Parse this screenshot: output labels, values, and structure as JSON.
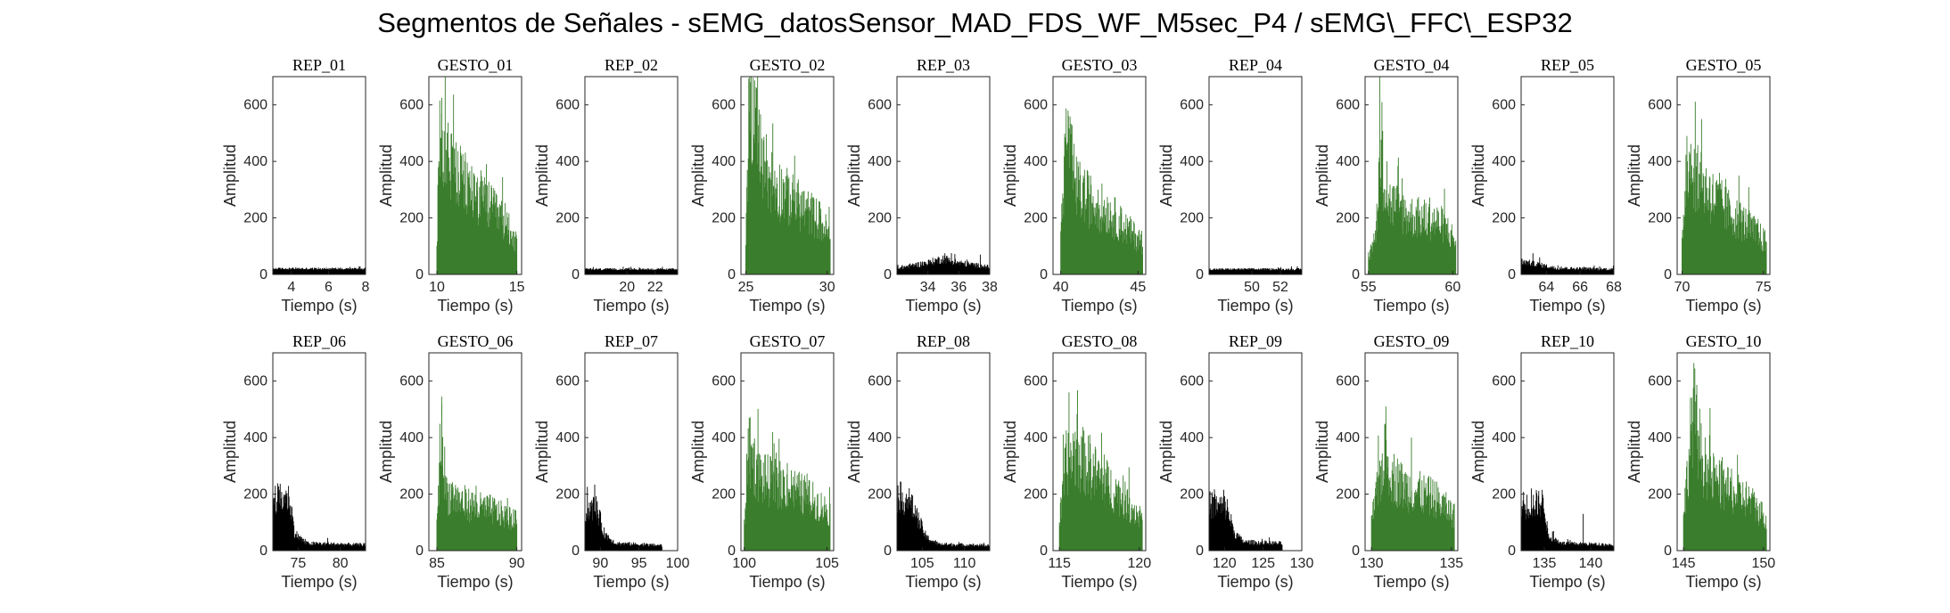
{
  "figure_title": "Segmentos de Señales - sEMG_datosSensor_MAD_FDS_WF_M5sec_P4 / sEMG\\_FFC\\_ESP32",
  "colors": {
    "rep": "#000000",
    "gesto": "#3a7d2c",
    "axis": "#262626"
  },
  "chart_data": [
    {
      "type": "bar",
      "title": "REP_01",
      "kind": "rep",
      "xlabel": "Tiempo (s)",
      "ylabel": "Amplitud",
      "xlim": [
        3,
        8
      ],
      "ylim": [
        0,
        700
      ],
      "xticks": [
        4,
        6,
        8
      ],
      "yticks": [
        0,
        200,
        400,
        600
      ],
      "envelope": [
        [
          3,
          20
        ],
        [
          8,
          20
        ]
      ],
      "noise": 0.4,
      "peaks": []
    },
    {
      "type": "bar",
      "title": "GESTO_01",
      "kind": "gesto",
      "xlabel": "Tiempo (s)",
      "ylabel": "Amplitud",
      "xlim": [
        9.5,
        15.3
      ],
      "ylim": [
        0,
        700
      ],
      "xticks": [
        10,
        15
      ],
      "yticks": [
        0,
        200,
        400,
        600
      ],
      "envelope": [
        [
          10,
          130
        ],
        [
          10.25,
          560
        ],
        [
          10.6,
          420
        ],
        [
          11.5,
          320
        ],
        [
          12.5,
          280
        ],
        [
          13.5,
          220
        ],
        [
          14.5,
          170
        ],
        [
          15,
          100
        ]
      ],
      "noise": 0.75,
      "peaks": [
        [
          10.3,
          570
        ],
        [
          11.5,
          430
        ],
        [
          13.1,
          390
        ]
      ]
    },
    {
      "type": "bar",
      "title": "REP_02",
      "kind": "rep",
      "xlabel": "Tiempo (s)",
      "ylabel": "Amplitud",
      "xlim": [
        17,
        23.6
      ],
      "ylim": [
        0,
        700
      ],
      "xticks": [
        20,
        22
      ],
      "yticks": [
        0,
        200,
        400,
        600
      ],
      "envelope": [
        [
          17,
          18
        ],
        [
          23.6,
          18
        ]
      ],
      "noise": 0.4,
      "peaks": []
    },
    {
      "type": "bar",
      "title": "GESTO_02",
      "kind": "gesto",
      "xlabel": "Tiempo (s)",
      "ylabel": "Amplitud",
      "xlim": [
        24.7,
        30.4
      ],
      "ylim": [
        0,
        700
      ],
      "xticks": [
        25,
        30
      ],
      "yticks": [
        0,
        200,
        400,
        600
      ],
      "envelope": [
        [
          25,
          150
        ],
        [
          25.25,
          670
        ],
        [
          25.7,
          450
        ],
        [
          26.5,
          330
        ],
        [
          27.5,
          270
        ],
        [
          28.5,
          230
        ],
        [
          29.5,
          190
        ],
        [
          30.2,
          130
        ]
      ],
      "noise": 0.75,
      "peaks": [
        [
          25.3,
          680
        ],
        [
          25.6,
          590
        ],
        [
          28,
          420
        ]
      ]
    },
    {
      "type": "bar",
      "title": "REP_03",
      "kind": "rep",
      "xlabel": "Tiempo (s)",
      "ylabel": "Amplitud",
      "xlim": [
        32,
        38
      ],
      "ylim": [
        0,
        700
      ],
      "xticks": [
        34,
        36,
        38
      ],
      "yticks": [
        0,
        200,
        400,
        600
      ],
      "envelope": [
        [
          32,
          22
        ],
        [
          34,
          40
        ],
        [
          35,
          55
        ],
        [
          36,
          40
        ],
        [
          38,
          25
        ]
      ],
      "noise": 0.6,
      "peaks": [
        [
          35.1,
          75
        ],
        [
          37.4,
          70
        ]
      ]
    },
    {
      "type": "bar",
      "title": "GESTO_03",
      "kind": "gesto",
      "xlabel": "Tiempo (s)",
      "ylabel": "Amplitud",
      "xlim": [
        39.5,
        45.5
      ],
      "ylim": [
        0,
        700
      ],
      "xticks": [
        40,
        45
      ],
      "yticks": [
        0,
        200,
        400,
        600
      ],
      "envelope": [
        [
          40,
          130
        ],
        [
          40.35,
          480
        ],
        [
          41,
          300
        ],
        [
          42,
          250
        ],
        [
          43,
          220
        ],
        [
          44,
          170
        ],
        [
          45.3,
          110
        ]
      ],
      "noise": 0.75,
      "peaks": [
        [
          40.5,
          560
        ],
        [
          40.3,
          470
        ]
      ]
    },
    {
      "type": "bar",
      "title": "REP_04",
      "kind": "rep",
      "xlabel": "Tiempo (s)",
      "ylabel": "Amplitud",
      "xlim": [
        47,
        53.5
      ],
      "ylim": [
        0,
        700
      ],
      "xticks": [
        50,
        52
      ],
      "yticks": [
        0,
        200,
        400,
        600
      ],
      "envelope": [
        [
          47,
          18
        ],
        [
          53.5,
          18
        ]
      ],
      "noise": 0.4,
      "peaks": []
    },
    {
      "type": "bar",
      "title": "GESTO_04",
      "kind": "gesto",
      "xlabel": "Tiempo (s)",
      "ylabel": "Amplitud",
      "xlim": [
        54.8,
        60.3
      ],
      "ylim": [
        0,
        700
      ],
      "xticks": [
        55,
        60
      ],
      "yticks": [
        0,
        200,
        400,
        600
      ],
      "envelope": [
        [
          55,
          60
        ],
        [
          55.4,
          120
        ],
        [
          55.7,
          420
        ],
        [
          56.2,
          250
        ],
        [
          57.5,
          200
        ],
        [
          58.5,
          190
        ],
        [
          59.5,
          170
        ],
        [
          60.2,
          110
        ]
      ],
      "noise": 0.75,
      "peaks": [
        [
          55.8,
          610
        ],
        [
          56.1,
          400
        ],
        [
          57,
          340
        ]
      ]
    },
    {
      "type": "bar",
      "title": "REP_05",
      "kind": "rep",
      "xlabel": "Tiempo (s)",
      "ylabel": "Amplitud",
      "xlim": [
        62.5,
        68
      ],
      "ylim": [
        0,
        700
      ],
      "xticks": [
        64,
        66,
        68
      ],
      "yticks": [
        0,
        200,
        400,
        600
      ],
      "envelope": [
        [
          62.5,
          45
        ],
        [
          63.5,
          35
        ],
        [
          64.5,
          22
        ],
        [
          68,
          18
        ]
      ],
      "noise": 0.55,
      "peaks": [
        [
          63.2,
          75
        ],
        [
          63.6,
          60
        ]
      ]
    },
    {
      "type": "bar",
      "title": "GESTO_05",
      "kind": "gesto",
      "xlabel": "Tiempo (s)",
      "ylabel": "Amplitud",
      "xlim": [
        69.7,
        75.4
      ],
      "ylim": [
        0,
        700
      ],
      "xticks": [
        70,
        75
      ],
      "yticks": [
        0,
        200,
        400,
        600
      ],
      "envelope": [
        [
          70,
          100
        ],
        [
          70.3,
          420
        ],
        [
          71,
          320
        ],
        [
          72,
          260
        ],
        [
          73,
          210
        ],
        [
          74,
          170
        ],
        [
          75.2,
          110
        ]
      ],
      "noise": 0.75,
      "peaks": [
        [
          70.3,
          490
        ],
        [
          71.2,
          550
        ],
        [
          72.3,
          360
        ]
      ]
    },
    {
      "type": "bar",
      "title": "REP_06",
      "kind": "rep",
      "xlabel": "Tiempo (s)",
      "ylabel": "Amplitud",
      "xlim": [
        72,
        83
      ],
      "ylim": [
        0,
        700
      ],
      "xticks": [
        75,
        80
      ],
      "yticks": [
        0,
        200,
        400,
        600
      ],
      "envelope": [
        [
          72,
          180
        ],
        [
          74,
          180
        ],
        [
          74.6,
          60
        ],
        [
          76,
          25
        ],
        [
          83,
          20
        ]
      ],
      "noise": 0.6,
      "peaks": [
        [
          72.6,
          210
        ],
        [
          73.5,
          200
        ],
        [
          78.5,
          45
        ]
      ]
    },
    {
      "type": "bar",
      "title": "GESTO_06",
      "kind": "gesto",
      "xlabel": "Tiempo (s)",
      "ylabel": "Amplitud",
      "xlim": [
        84.5,
        90.3
      ],
      "ylim": [
        0,
        700
      ],
      "xticks": [
        85,
        90
      ],
      "yticks": [
        0,
        200,
        400,
        600
      ],
      "envelope": [
        [
          85,
          80
        ],
        [
          85.25,
          420
        ],
        [
          85.6,
          200
        ],
        [
          86.5,
          170
        ],
        [
          87.5,
          150
        ],
        [
          88.5,
          140
        ],
        [
          90,
          100
        ]
      ],
      "noise": 0.75,
      "peaks": [
        [
          85.3,
          545
        ],
        [
          86.2,
          220
        ]
      ]
    },
    {
      "type": "bar",
      "title": "REP_07",
      "kind": "rep",
      "xlabel": "Tiempo (s)",
      "ylabel": "Amplitud",
      "xlim": [
        88,
        100
      ],
      "ylim": [
        0,
        700
      ],
      "xticks": [
        90,
        95,
        100
      ],
      "yticks": [
        0,
        200,
        400,
        600
      ],
      "envelope": [
        [
          88,
          140
        ],
        [
          89.5,
          150
        ],
        [
          90.5,
          60
        ],
        [
          92,
          25
        ],
        [
          98,
          18
        ]
      ],
      "noise": 0.6,
      "peaks": [
        [
          89.1,
          190
        ],
        [
          89.6,
          175
        ]
      ]
    },
    {
      "type": "bar",
      "title": "GESTO_07",
      "kind": "gesto",
      "xlabel": "Tiempo (s)",
      "ylabel": "Amplitud",
      "xlim": [
        99.8,
        105.4
      ],
      "ylim": [
        0,
        700
      ],
      "xticks": [
        100,
        105
      ],
      "yticks": [
        0,
        200,
        400,
        600
      ],
      "envelope": [
        [
          100,
          90
        ],
        [
          100.25,
          350
        ],
        [
          101,
          250
        ],
        [
          102,
          230
        ],
        [
          103,
          210
        ],
        [
          104,
          180
        ],
        [
          105.2,
          130
        ]
      ],
      "noise": 0.75,
      "peaks": [
        [
          100.3,
          470
        ],
        [
          101.8,
          380
        ],
        [
          102.6,
          310
        ]
      ]
    },
    {
      "type": "bar",
      "title": "REP_08",
      "kind": "rep",
      "xlabel": "Tiempo (s)",
      "ylabel": "Amplitud",
      "xlim": [
        102,
        113
      ],
      "ylim": [
        0,
        700
      ],
      "xticks": [
        105,
        110
      ],
      "yticks": [
        0,
        200,
        400,
        600
      ],
      "envelope": [
        [
          102,
          190
        ],
        [
          103.5,
          170
        ],
        [
          104.5,
          110
        ],
        [
          105.5,
          45
        ],
        [
          107,
          22
        ],
        [
          113,
          18
        ]
      ],
      "noise": 0.6,
      "peaks": [
        [
          102.4,
          200
        ]
      ]
    },
    {
      "type": "bar",
      "title": "GESTO_08",
      "kind": "gesto",
      "xlabel": "Tiempo (s)",
      "ylabel": "Amplitud",
      "xlim": [
        114.6,
        120.4
      ],
      "ylim": [
        0,
        700
      ],
      "xticks": [
        115,
        120
      ],
      "yticks": [
        0,
        200,
        400,
        600
      ],
      "envelope": [
        [
          115,
          90
        ],
        [
          115.4,
          300
        ],
        [
          116,
          340
        ],
        [
          117,
          280
        ],
        [
          118,
          230
        ],
        [
          119,
          180
        ],
        [
          120.2,
          110
        ]
      ],
      "noise": 0.75,
      "peaks": [
        [
          115.6,
          560
        ],
        [
          116.9,
          410
        ],
        [
          117.8,
          340
        ]
      ]
    },
    {
      "type": "bar",
      "title": "REP_09",
      "kind": "rep",
      "xlabel": "Tiempo (s)",
      "ylabel": "Amplitud",
      "xlim": [
        118,
        130
      ],
      "ylim": [
        0,
        700
      ],
      "xticks": [
        120,
        125,
        130
      ],
      "yticks": [
        0,
        200,
        400,
        600
      ],
      "envelope": [
        [
          118,
          160
        ],
        [
          120.3,
          150
        ],
        [
          121.3,
          60
        ],
        [
          122.5,
          30
        ],
        [
          127.5,
          25
        ]
      ],
      "noise": 0.6,
      "peaks": [
        [
          118.4,
          200
        ],
        [
          119.9,
          215
        ]
      ]
    },
    {
      "type": "bar",
      "title": "GESTO_09",
      "kind": "gesto",
      "xlabel": "Tiempo (s)",
      "ylabel": "Amplitud",
      "xlim": [
        129.6,
        135.4
      ],
      "ylim": [
        0,
        700
      ],
      "xticks": [
        130,
        135
      ],
      "yticks": [
        0,
        200,
        400,
        600
      ],
      "envelope": [
        [
          130,
          100
        ],
        [
          130.8,
          330
        ],
        [
          131.3,
          260
        ],
        [
          132,
          220
        ],
        [
          133,
          200
        ],
        [
          134,
          180
        ],
        [
          135.2,
          120
        ]
      ],
      "noise": 0.75,
      "peaks": [
        [
          130.9,
          510
        ],
        [
          132.5,
          400
        ]
      ]
    },
    {
      "type": "bar",
      "title": "REP_10",
      "kind": "rep",
      "xlabel": "Tiempo (s)",
      "ylabel": "Amplitud",
      "xlim": [
        132.5,
        142.5
      ],
      "ylim": [
        0,
        700
      ],
      "xticks": [
        135,
        140
      ],
      "yticks": [
        0,
        200,
        400,
        600
      ],
      "envelope": [
        [
          132.5,
          150
        ],
        [
          135,
          170
        ],
        [
          135.4,
          50
        ],
        [
          137,
          25
        ],
        [
          142.5,
          20
        ]
      ],
      "noise": 0.6,
      "peaks": [
        [
          133.6,
          220
        ],
        [
          139.2,
          130
        ]
      ]
    },
    {
      "type": "bar",
      "title": "GESTO_10",
      "kind": "gesto",
      "xlabel": "Tiempo (s)",
      "ylabel": "Amplitud",
      "xlim": [
        144.6,
        150.4
      ],
      "ylim": [
        0,
        700
      ],
      "xticks": [
        145,
        150
      ],
      "yticks": [
        0,
        200,
        400,
        600
      ],
      "envelope": [
        [
          145,
          110
        ],
        [
          145.6,
          500
        ],
        [
          146.2,
          300
        ],
        [
          147,
          240
        ],
        [
          148,
          200
        ],
        [
          149,
          180
        ],
        [
          150.2,
          110
        ]
      ],
      "noise": 0.75,
      "peaks": [
        [
          145.7,
          570
        ],
        [
          146.4,
          340
        ],
        [
          148,
          290
        ]
      ]
    }
  ]
}
